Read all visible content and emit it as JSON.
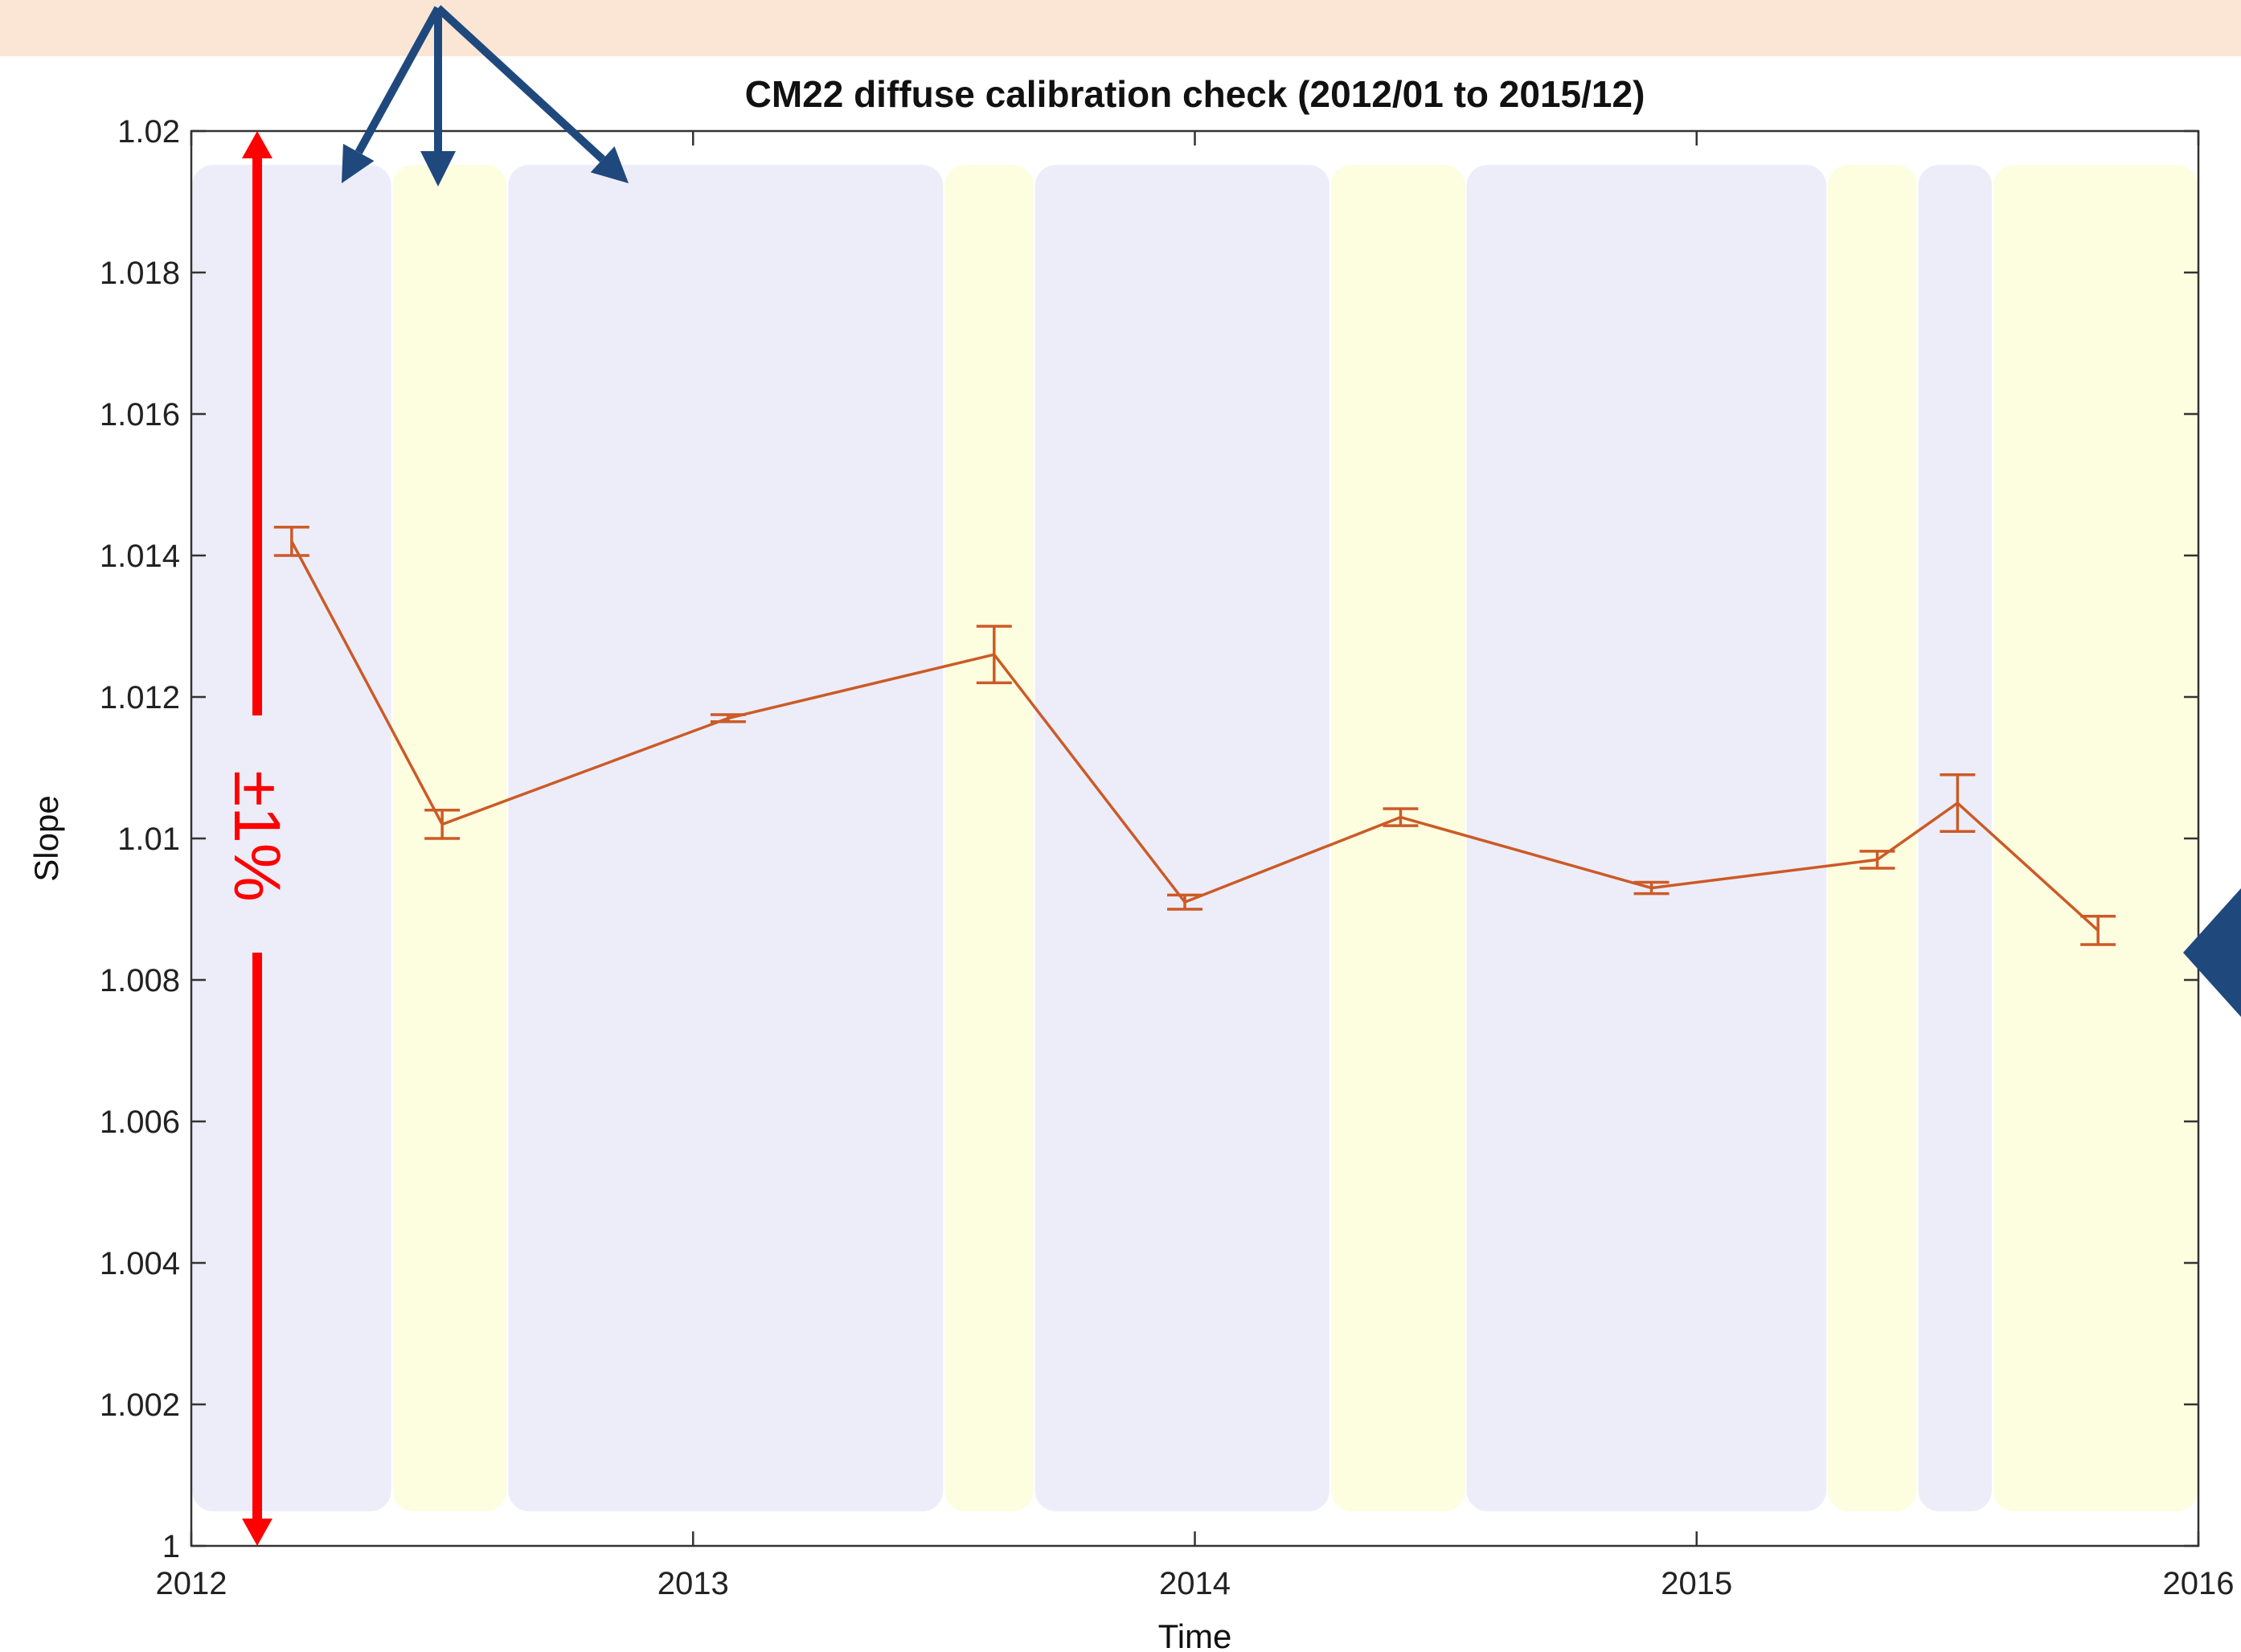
{
  "chart_data": {
    "type": "line",
    "title": "CM22 diffuse calibration check (2012/01 to 2015/12)",
    "xlabel": "Time",
    "ylabel": "Slope",
    "xlim": [
      2012.0,
      2016.0
    ],
    "ylim": [
      1.0,
      1.02
    ],
    "xticks": [
      2012,
      2013,
      2014,
      2015,
      2016
    ],
    "xtick_labels": [
      "2012",
      "2013",
      "2014",
      "2015",
      "2016"
    ],
    "yticks": [
      1.0,
      1.002,
      1.004,
      1.006,
      1.008,
      1.01,
      1.012,
      1.014,
      1.016,
      1.018,
      1.02
    ],
    "ytick_labels": [
      "1",
      "1.002",
      "1.004",
      "1.006",
      "1.008",
      "1.01",
      "1.012",
      "1.014",
      "1.016",
      "1.018",
      "1.02"
    ],
    "grid": false,
    "series": [
      {
        "color": "#cc5a26",
        "x": [
          2012.2,
          2012.5,
          2013.07,
          2013.6,
          2013.98,
          2014.41,
          2014.91,
          2015.36,
          2015.52,
          2015.8
        ],
        "y": [
          1.0142,
          1.0102,
          1.0117,
          1.0126,
          1.0091,
          1.0103,
          1.0093,
          1.0097,
          1.0105,
          1.0087
        ],
        "err": [
          0.0002,
          0.0002,
          5e-05,
          0.0004,
          0.0001,
          0.00012,
          8e-05,
          0.00012,
          0.0004,
          0.0002
        ]
      }
    ],
    "background_bands": [
      {
        "x0": 2012.0,
        "x1": 2012.4,
        "color": "#ededfa"
      },
      {
        "x0": 2012.4,
        "x1": 2012.63,
        "color": "#fdfde0"
      },
      {
        "x0": 2012.63,
        "x1": 2013.5,
        "color": "#ededfa"
      },
      {
        "x0": 2013.5,
        "x1": 2013.68,
        "color": "#fdfde0"
      },
      {
        "x0": 2013.68,
        "x1": 2014.27,
        "color": "#ededfa"
      },
      {
        "x0": 2014.27,
        "x1": 2014.54,
        "color": "#fdfde0"
      },
      {
        "x0": 2014.54,
        "x1": 2015.26,
        "color": "#ededfa"
      },
      {
        "x0": 2015.26,
        "x1": 2015.44,
        "color": "#fdfde0"
      },
      {
        "x0": 2015.44,
        "x1": 2015.59,
        "color": "#ededfa"
      },
      {
        "x0": 2015.59,
        "x1": 2016.0,
        "color": "#fdfde0"
      }
    ],
    "annotation": {
      "text": "±1%",
      "color": "#ff0000",
      "y_from": 1.0,
      "y_to": 1.02
    },
    "arrow_color": "#1f497d"
  }
}
